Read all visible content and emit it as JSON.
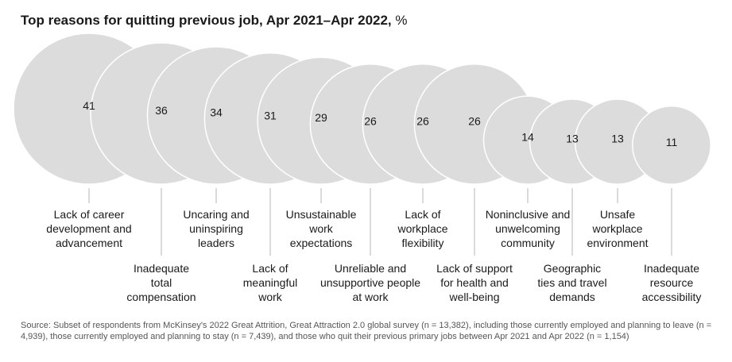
{
  "chart_data": {
    "type": "bubble",
    "title": "Top reasons for quitting previous job, Apr 2021–Apr 2022,",
    "unit": "%",
    "categories": [
      "Lack of career development and advancement",
      "Inadequate total compensation",
      "Uncaring and uninspiring leaders",
      "Lack of meaningful work",
      "Unsustainable work expectations",
      "Unreliable and unsupportive people at work",
      "Lack of workplace flexibility",
      "Lack of support for health and well-being",
      "Noninclusive and unwelcoming community",
      "Geographic ties and travel demands",
      "Unsafe workplace environment",
      "Inadequate resource accessibility"
    ],
    "label_lines": [
      [
        "Lack of career",
        "development and",
        "advancement"
      ],
      [
        "Inadequate",
        "total",
        "compensation"
      ],
      [
        "Uncaring and",
        "uninspiring",
        "leaders"
      ],
      [
        "Lack of",
        "meaningful",
        "work"
      ],
      [
        "Unsustainable",
        "work",
        "expectations"
      ],
      [
        "Unreliable and",
        "unsupportive people",
        "at work"
      ],
      [
        "Lack of",
        "workplace",
        "flexibility"
      ],
      [
        "Lack of support",
        "for health and",
        "well-being"
      ],
      [
        "Noninclusive and",
        "unwelcoming",
        "community"
      ],
      [
        "Geographic",
        "ties and travel",
        "demands"
      ],
      [
        "Unsafe",
        "workplace",
        "environment"
      ],
      [
        "Inadequate",
        "resource",
        "accessibility"
      ]
    ],
    "label_rows": [
      "top",
      "bottom",
      "top",
      "bottom",
      "top",
      "bottom",
      "top",
      "bottom",
      "top",
      "bottom",
      "top",
      "bottom"
    ],
    "values": [
      41,
      36,
      34,
      31,
      29,
      26,
      26,
      26,
      14,
      13,
      13,
      11
    ],
    "color": "#dcdcdc"
  },
  "source": "Source: Subset of respondents from McKinsey's 2022 Great Attrition, Great Attraction 2.0 global survey (n = 13,382), including those currently employed and planning to leave (n = 4,939), those currently employed and planning to stay (n = 7,439), and those who quit their previous primary jobs between Apr 2021 and Apr 2022 (n = 1,154)"
}
